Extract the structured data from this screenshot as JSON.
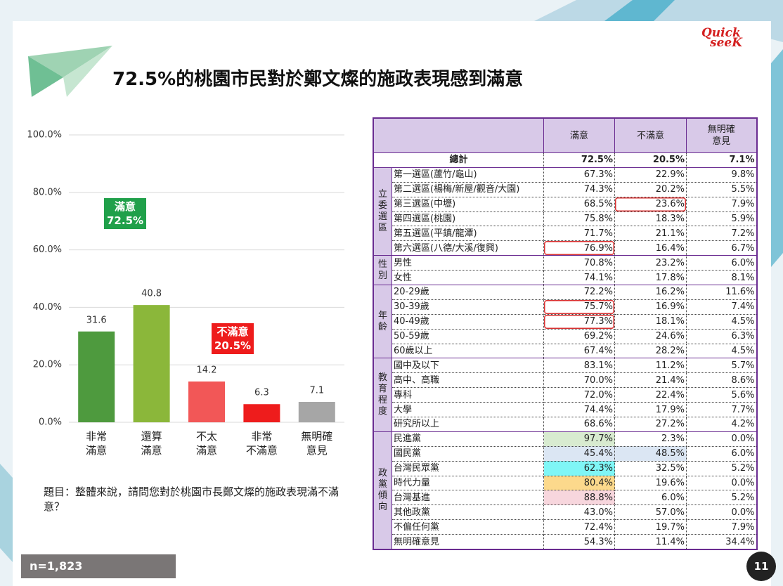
{
  "header": {
    "title": "72.5%的桃園市民對於鄭文燦的施政表現感到滿意",
    "logo": [
      "Quick",
      "seeK"
    ]
  },
  "chart_data": {
    "type": "bar",
    "categories": [
      "非常\n滿意",
      "還算\n滿意",
      "不太\n滿意",
      "非常\n不滿意",
      "無明確\n意見"
    ],
    "values": [
      31.6,
      40.8,
      14.2,
      6.3,
      7.1
    ],
    "colors": [
      "#4e9a3e",
      "#8bb73a",
      "#f25757",
      "#ee1c1c",
      "#a6a6a6"
    ],
    "ylim": [
      0,
      100
    ],
    "yticks": [
      {
        "value": 0,
        "label": "0.0%"
      },
      {
        "value": 20,
        "label": "20.0%"
      },
      {
        "value": 40,
        "label": "40.0%"
      },
      {
        "value": 60,
        "label": "60.0%"
      },
      {
        "value": 80,
        "label": "80.0%"
      },
      {
        "value": 100,
        "label": "100.0%"
      }
    ],
    "grid": true,
    "annotations": [
      {
        "text": "滿意\n72.5%",
        "color": "#20a04a"
      },
      {
        "text": "不滿意\n20.5%",
        "color": "#ee1c1c"
      }
    ]
  },
  "question": "題目：整體來說，請問您對於桃園市長鄭文燦的施政表現滿不滿意？",
  "sample": "n=1,823",
  "page_number": "11",
  "table": {
    "columns": [
      "滿意",
      "不滿意",
      "無明確\n意見"
    ],
    "total": {
      "label": "總計",
      "cells": [
        "72.5%",
        "20.5%",
        "7.1%"
      ]
    },
    "groups": [
      {
        "label": "立委選區",
        "rows": [
          {
            "cells": [
              "第一選區(蘆竹/龜山)",
              "67.3%",
              "22.9%",
              "9.8%"
            ]
          },
          {
            "cells": [
              "第二選區(楊梅/新屋/觀音/大園)",
              "74.3%",
              "20.2%",
              "5.5%"
            ]
          },
          {
            "cells": [
              "第三選區(中壢)",
              "68.5%",
              "23.6%",
              "7.9%"
            ],
            "boxed": [
              2
            ]
          },
          {
            "cells": [
              "第四選區(桃園)",
              "75.8%",
              "18.3%",
              "5.9%"
            ]
          },
          {
            "cells": [
              "第五選區(平鎮/龍潭)",
              "71.7%",
              "21.1%",
              "7.2%"
            ]
          },
          {
            "cells": [
              "第六選區(八德/大溪/復興)",
              "76.9%",
              "16.4%",
              "6.7%"
            ],
            "boxed": [
              1
            ]
          }
        ]
      },
      {
        "label": "性別",
        "rows": [
          {
            "cells": [
              "男性",
              "70.8%",
              "23.2%",
              "6.0%"
            ]
          },
          {
            "cells": [
              "女性",
              "74.1%",
              "17.8%",
              "8.1%"
            ]
          }
        ]
      },
      {
        "label": "年齡",
        "rows": [
          {
            "cells": [
              "20-29歲",
              "72.2%",
              "16.2%",
              "11.6%"
            ]
          },
          {
            "cells": [
              "30-39歲",
              "75.7%",
              "16.9%",
              "7.4%"
            ],
            "boxed": [
              1
            ]
          },
          {
            "cells": [
              "40-49歲",
              "77.3%",
              "18.1%",
              "4.5%"
            ],
            "boxed": [
              1
            ]
          },
          {
            "cells": [
              "50-59歲",
              "69.2%",
              "24.6%",
              "6.3%"
            ]
          },
          {
            "cells": [
              "60歲以上",
              "67.4%",
              "28.2%",
              "4.5%"
            ]
          }
        ]
      },
      {
        "label": "教育程度",
        "rows": [
          {
            "cells": [
              "國中及以下",
              "83.1%",
              "11.2%",
              "5.7%"
            ]
          },
          {
            "cells": [
              "高中、高職",
              "70.0%",
              "21.4%",
              "8.6%"
            ]
          },
          {
            "cells": [
              "專科",
              "72.0%",
              "22.4%",
              "5.6%"
            ]
          },
          {
            "cells": [
              "大學",
              "74.4%",
              "17.9%",
              "7.7%"
            ]
          },
          {
            "cells": [
              "研究所以上",
              "68.6%",
              "27.2%",
              "4.2%"
            ]
          }
        ]
      },
      {
        "label": "政黨傾向",
        "rows": [
          {
            "cells": [
              "民進黨",
              "97.7%",
              "2.3%",
              "0.0%"
            ],
            "shade": [
              null,
              "#d8ebd0",
              null,
              null
            ]
          },
          {
            "cells": [
              "國民黨",
              "45.4%",
              "48.5%",
              "6.0%"
            ],
            "shade": [
              null,
              "#dbe6f3",
              "#dbe6f3",
              null
            ]
          },
          {
            "cells": [
              "台灣民眾黨",
              "62.3%",
              "32.5%",
              "5.2%"
            ],
            "shade": [
              null,
              "#7ff6f6",
              null,
              null
            ]
          },
          {
            "cells": [
              "時代力量",
              "80.4%",
              "19.6%",
              "0.0%"
            ],
            "shade": [
              null,
              "#fcd98c",
              null,
              null
            ]
          },
          {
            "cells": [
              "台灣基進",
              "88.8%",
              "6.0%",
              "5.2%"
            ],
            "shade": [
              null,
              "#f7d6dd",
              null,
              null
            ]
          },
          {
            "cells": [
              "其他政黨",
              "43.0%",
              "57.0%",
              "0.0%"
            ]
          },
          {
            "cells": [
              "不偏任何黨",
              "72.4%",
              "19.7%",
              "7.9%"
            ]
          },
          {
            "cells": [
              "無明確意見",
              "54.3%",
              "11.4%",
              "34.4%"
            ]
          }
        ]
      }
    ]
  }
}
